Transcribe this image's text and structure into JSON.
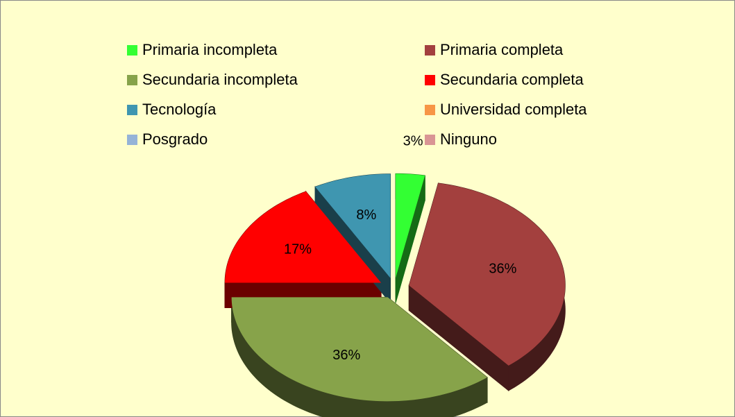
{
  "chart_data": {
    "type": "pie",
    "categories": [
      "Primaria incompleta",
      "Primaria completa",
      "Secundaria incompleta",
      "Secundaria completa",
      "Tecnología",
      "Universidad completa",
      "Posgrado",
      "Ninguno"
    ],
    "values": [
      3,
      36,
      36,
      17,
      8,
      0,
      0,
      0
    ],
    "value_labels": [
      "3%",
      "36%",
      "36%",
      "17%",
      "8%",
      null,
      null,
      null
    ],
    "colors": [
      "#33ff33",
      "#a3403e",
      "#87a34a",
      "#ff0000",
      "#3f96b0",
      "#f79646",
      "#95b3d7",
      "#d99594"
    ],
    "legend": "top"
  }
}
